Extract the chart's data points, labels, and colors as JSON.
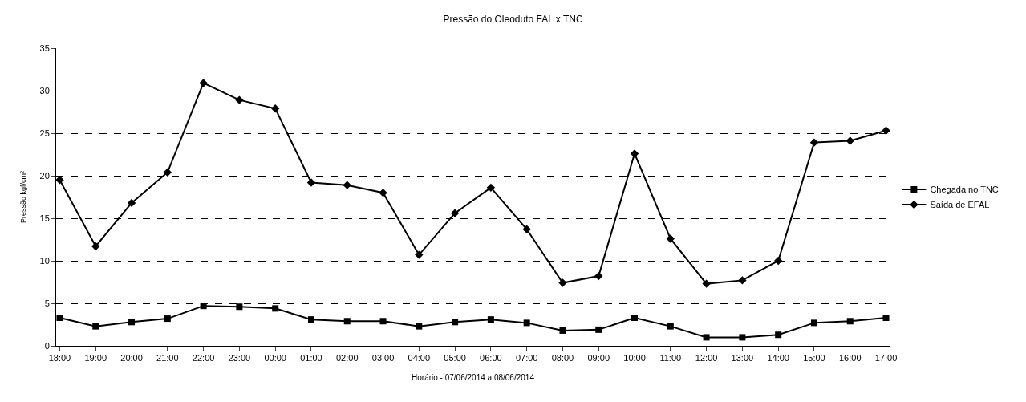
{
  "chart_data": {
    "type": "line",
    "title": "Pressão do Oleoduto FAL x TNC",
    "xlabel": "Horário - 07/06/2014 a 08/06/2014",
    "ylabel": "Pressão kgf/cm²",
    "categories": [
      "18:00",
      "19:00",
      "20:00",
      "21:00",
      "22:00",
      "23:00",
      "00:00",
      "01:00",
      "02:00",
      "03:00",
      "04:00",
      "05:00",
      "06:00",
      "07:00",
      "08:00",
      "09:00",
      "10:00",
      "11:00",
      "12:00",
      "13:00",
      "14:00",
      "15:00",
      "16:00",
      "17:00"
    ],
    "series": [
      {
        "name": "Chegada no TNC",
        "color": "#000000",
        "marker": "square",
        "values": [
          3.3,
          2.3,
          2.8,
          3.2,
          4.7,
          4.6,
          4.4,
          3.1,
          2.9,
          2.9,
          2.3,
          2.8,
          3.1,
          2.7,
          1.8,
          1.9,
          3.3,
          2.3,
          1.0,
          1.0,
          1.3,
          2.7,
          2.9,
          3.3
        ]
      },
      {
        "name": "Saída de EFAL",
        "color": "#000000",
        "marker": "diamond",
        "values": [
          19.5,
          11.7,
          16.8,
          20.4,
          30.9,
          28.9,
          27.9,
          19.2,
          18.9,
          18.0,
          10.7,
          15.6,
          18.6,
          13.7,
          7.4,
          8.2,
          22.6,
          12.6,
          7.3,
          7.7,
          10.0,
          23.9,
          24.1,
          25.3
        ]
      }
    ],
    "ylim": [
      0,
      35
    ],
    "yticks": [
      0,
      5,
      10,
      15,
      20,
      25,
      30,
      35
    ],
    "grid": "y",
    "line_style": "solid",
    "legend": "right"
  }
}
